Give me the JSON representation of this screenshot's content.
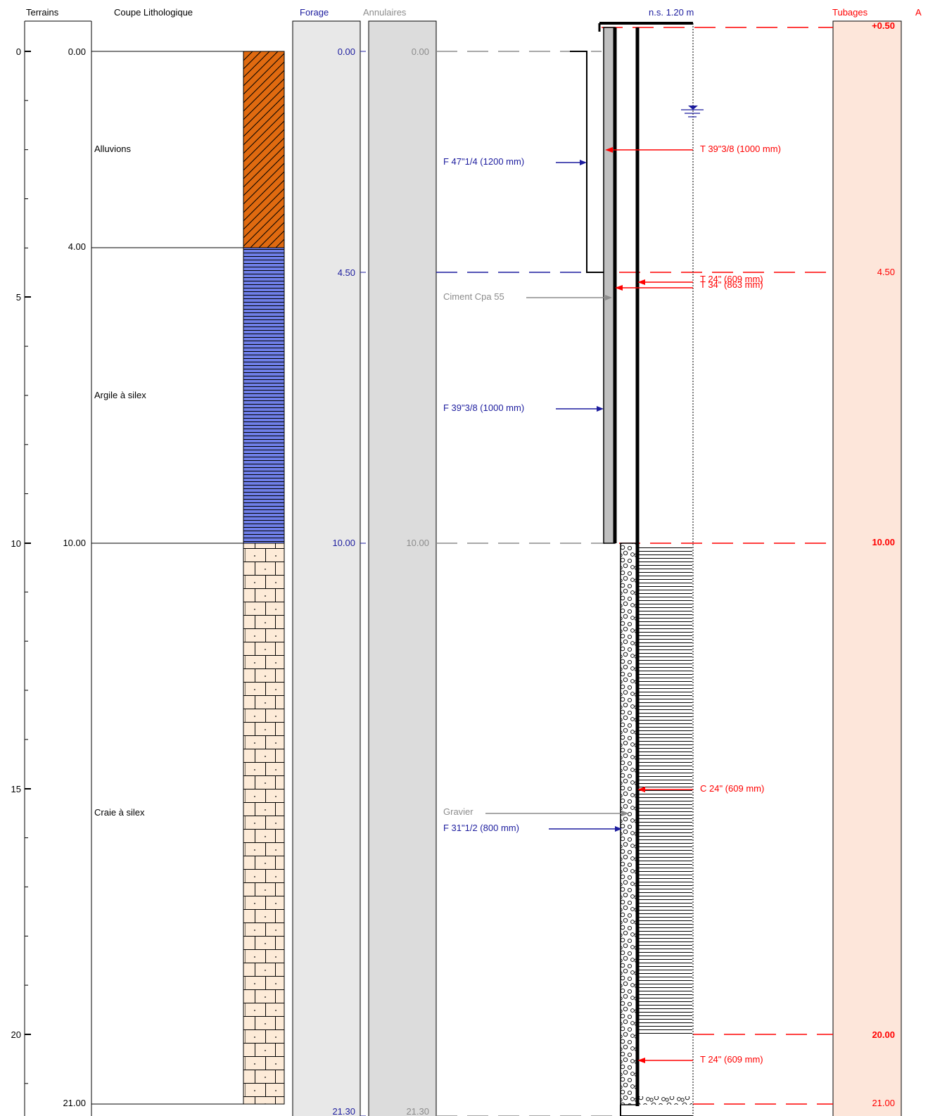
{
  "headers": {
    "terrains": "Terrains",
    "coupe": "Coupe Lithologique",
    "forage": "Forage",
    "annulaires": "Annulaires",
    "ns": "n.s. 1.20 m",
    "tubages": "Tubages",
    "cut": "A"
  },
  "depth_ticks": [
    "0",
    "5",
    "10",
    "15",
    "20"
  ],
  "layers": [
    {
      "top": "0.00",
      "name": "Alluvions",
      "pattern": "diagonal",
      "color": "#e06a10"
    },
    {
      "top": "4.00",
      "name": "Argile à silex",
      "pattern": "horizontal",
      "color": "#6f7fe8"
    },
    {
      "top": "10.00",
      "name": "Craie à silex",
      "pattern": "brick",
      "color": "#fdebd8"
    },
    {
      "top": "21.00",
      "name": "",
      "pattern": "",
      "color": ""
    }
  ],
  "forage_depths": [
    "0.00",
    "4.50",
    "10.00",
    "21.30"
  ],
  "annulaires_depths": [
    "0.00",
    "10.00",
    "21.30"
  ],
  "tubages_depths": [
    "+0.50",
    "4.50",
    "10.00",
    "20.00",
    "21.00"
  ],
  "annotations": {
    "forage1": "F 47\"1/4 (1200 mm)",
    "forage2": "F 39\"3/8 (1000 mm)",
    "forage3": "F 31\"1/2 (800 mm)",
    "ciment": "Ciment Cpa 55",
    "gravier": "Gravier",
    "tube1": "T 39\"3/8 (1000 mm)",
    "tube2": "T 24\" (609 mm)",
    "tube3": "T 34\" (863 mm)",
    "crepine": "C 24\" (609 mm)",
    "tube4": "T 24\" (609 mm)"
  },
  "colors": {
    "blue": "#1c1c9e",
    "red": "#ff0000",
    "grey": "#8c8c8c",
    "forage_bg": "#e8e8e8",
    "annulaires_bg": "#dcdcdc",
    "tubages_bg": "#fde6da"
  }
}
